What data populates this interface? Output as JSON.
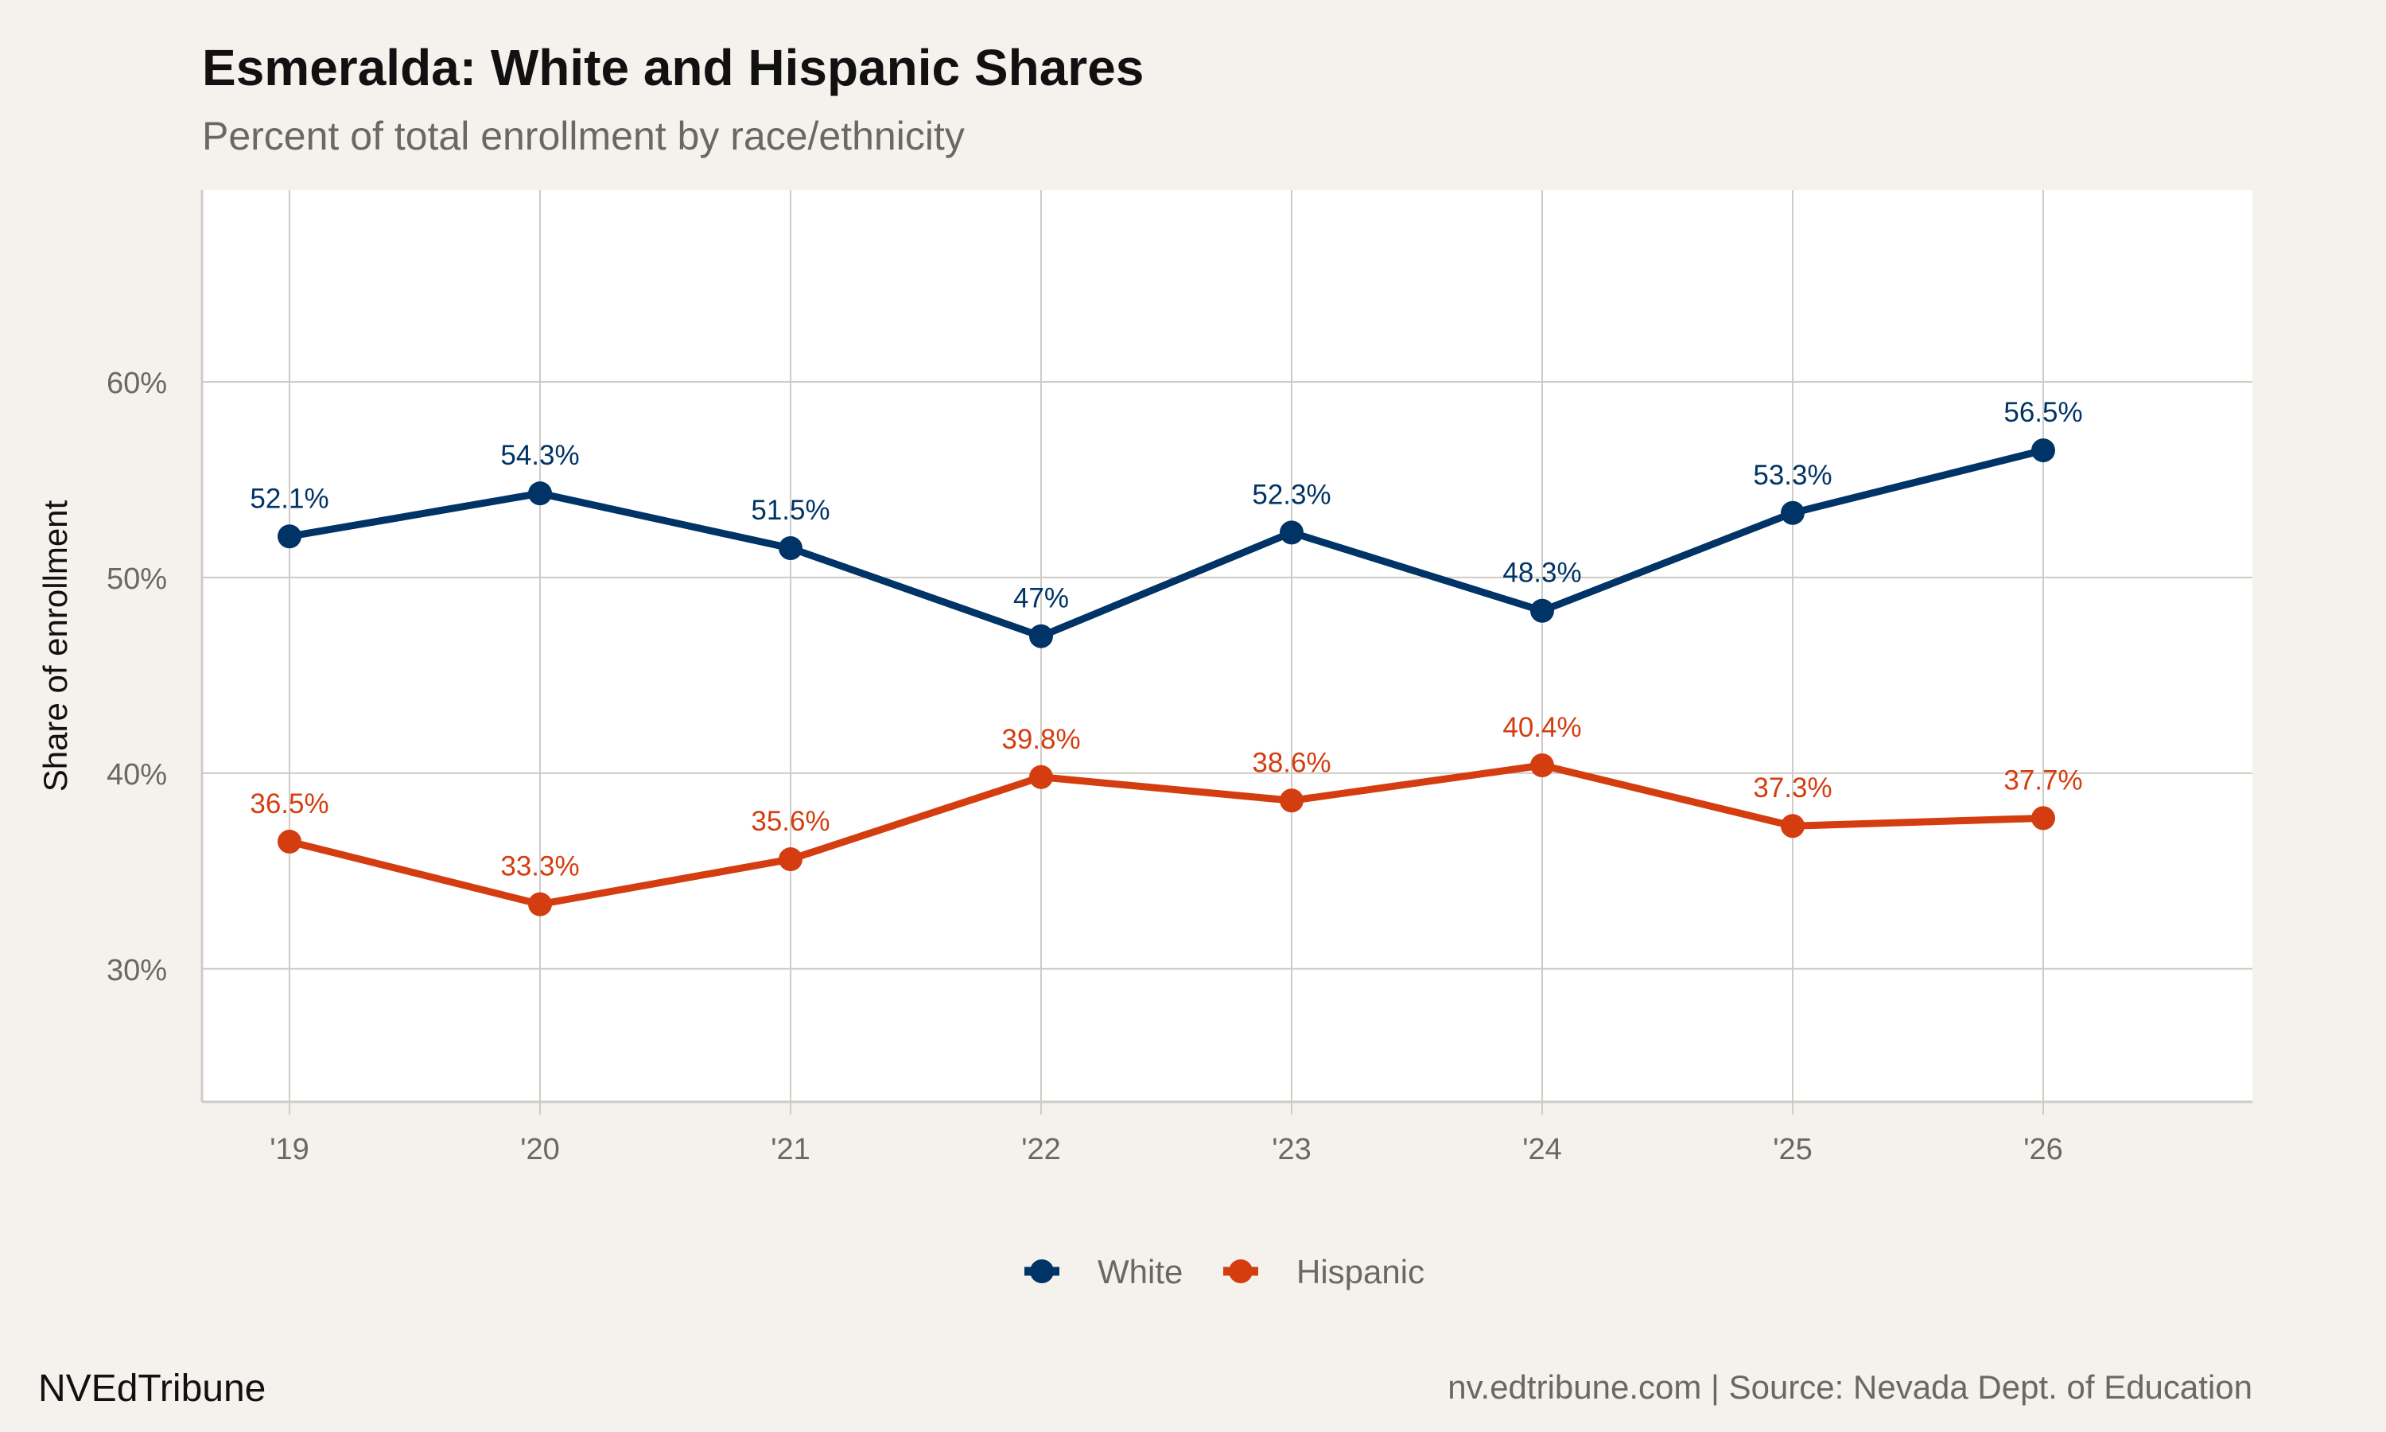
{
  "title": "Esmeralda: White and Hispanic Shares",
  "subtitle": "Percent of total enrollment by race/ethnicity",
  "footer": {
    "brand": "NVEdTribune",
    "source": "nv.edtribune.com | Source: Nevada Dept. of Education"
  },
  "colors": {
    "background": "#f5f2ee",
    "panel": "#ffffff",
    "grid": "#cfcbc6",
    "White": "#003366",
    "Hispanic": "#d43d0f"
  },
  "chart_data": {
    "type": "line",
    "title": "Esmeralda: White and Hispanic Shares",
    "subtitle": "Percent of total enrollment by race/ethnicity",
    "xlabel": "",
    "ylabel": "Share of enrollment",
    "categories": [
      "'19",
      "'20",
      "'21",
      "'22",
      "'23",
      "'24",
      "'25",
      "'26"
    ],
    "yticks": [
      30,
      40,
      50,
      60
    ],
    "ytick_labels": [
      "30%",
      "40%",
      "50%",
      "60%"
    ],
    "ylim": [
      23.2,
      69.8
    ],
    "grid": true,
    "legend_position": "bottom",
    "series": [
      {
        "name": "White",
        "values": [
          52.1,
          54.3,
          51.5,
          47,
          52.3,
          48.3,
          53.3,
          56.5
        ],
        "labels": [
          "52.1%",
          "54.3%",
          "51.5%",
          "47%",
          "52.3%",
          "48.3%",
          "53.3%",
          "56.5%"
        ]
      },
      {
        "name": "Hispanic",
        "values": [
          36.5,
          33.3,
          35.6,
          39.8,
          38.6,
          40.4,
          37.3,
          37.7
        ],
        "labels": [
          "36.5%",
          "33.3%",
          "35.6%",
          "39.8%",
          "38.6%",
          "40.4%",
          "37.3%",
          "37.7%"
        ]
      }
    ]
  }
}
